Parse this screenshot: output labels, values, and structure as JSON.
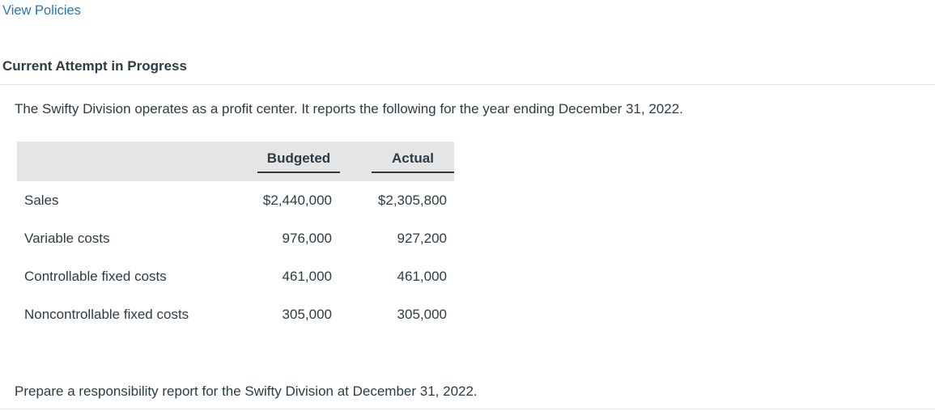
{
  "page": {
    "view_policies_link": "View Policies",
    "section_title": "Current Attempt in Progress",
    "intro_text": "The Swifty Division operates as a profit center. It reports the following for the year ending December 31, 2022.",
    "instruction_text": "Prepare a responsibility report for the Swifty Division at December 31, 2022."
  },
  "table": {
    "columns": [
      "",
      "Budgeted",
      "Actual"
    ],
    "rows": [
      {
        "label": "Sales",
        "budgeted": "$2,440,000",
        "actual": "$2,305,800"
      },
      {
        "label": "Variable costs",
        "budgeted": "976,000",
        "actual": "927,200"
      },
      {
        "label": "Controllable fixed costs",
        "budgeted": "461,000",
        "actual": "461,000"
      },
      {
        "label": "Noncontrollable fixed costs",
        "budgeted": "305,000",
        "actual": "305,000"
      }
    ]
  },
  "colors": {
    "link_blue": "#2577B8",
    "text_dark": "#2D3B45",
    "table_header_bg": "#E5E5E5",
    "divider_gray": "#E0E0E0",
    "header_underline": "#2D3B45"
  }
}
